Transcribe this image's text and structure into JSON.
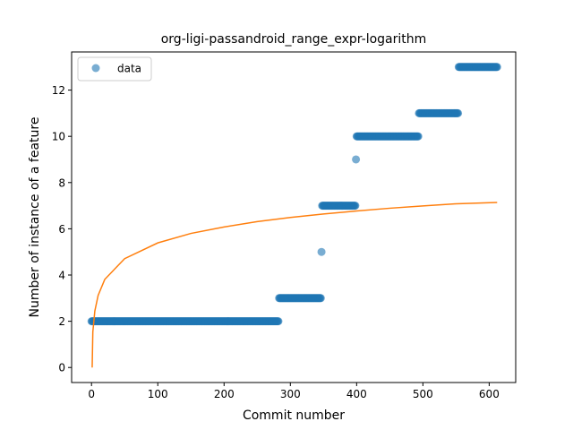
{
  "chart_data": {
    "type": "scatter",
    "title": "org-ligi-passandroid_range_expr-logarithm",
    "xlabel": "Commit number",
    "ylabel": "Number of instance of a feature",
    "xlim": [
      -30,
      640
    ],
    "ylim": [
      -0.65,
      13.65
    ],
    "xticks": [
      0,
      100,
      200,
      300,
      400,
      500,
      600
    ],
    "yticks": [
      0,
      2,
      4,
      6,
      8,
      10,
      12
    ],
    "grid": false,
    "legend": {
      "placement": "upper-left",
      "entries": [
        "data"
      ]
    },
    "colors": {
      "data": "#1f77b4",
      "fit": "#ff7f0e"
    },
    "series": [
      {
        "name": "data",
        "kind": "scatter",
        "segments": [
          {
            "x_start": 0,
            "x_end": 282,
            "y": 2
          },
          {
            "x_start": 283,
            "x_end": 346,
            "y": 3
          },
          {
            "x_start": 347,
            "x_end": 347,
            "y": 5
          },
          {
            "x_start": 348,
            "x_end": 398,
            "y": 7
          },
          {
            "x_start": 399,
            "x_end": 399,
            "y": 9
          },
          {
            "x_start": 400,
            "x_end": 493,
            "y": 10
          },
          {
            "x_start": 494,
            "x_end": 553,
            "y": 11
          },
          {
            "x_start": 554,
            "x_end": 612,
            "y": 13
          }
        ]
      },
      {
        "kind": "line",
        "x": [
          1,
          2,
          5,
          10,
          20,
          50,
          100,
          150,
          200,
          250,
          300,
          350,
          400,
          450,
          500,
          550,
          612
        ],
        "y": [
          0.0,
          1.54,
          2.44,
          3.12,
          3.81,
          4.71,
          5.39,
          5.8,
          6.08,
          6.31,
          6.49,
          6.64,
          6.77,
          6.89,
          6.99,
          7.08,
          7.14
        ]
      }
    ]
  }
}
